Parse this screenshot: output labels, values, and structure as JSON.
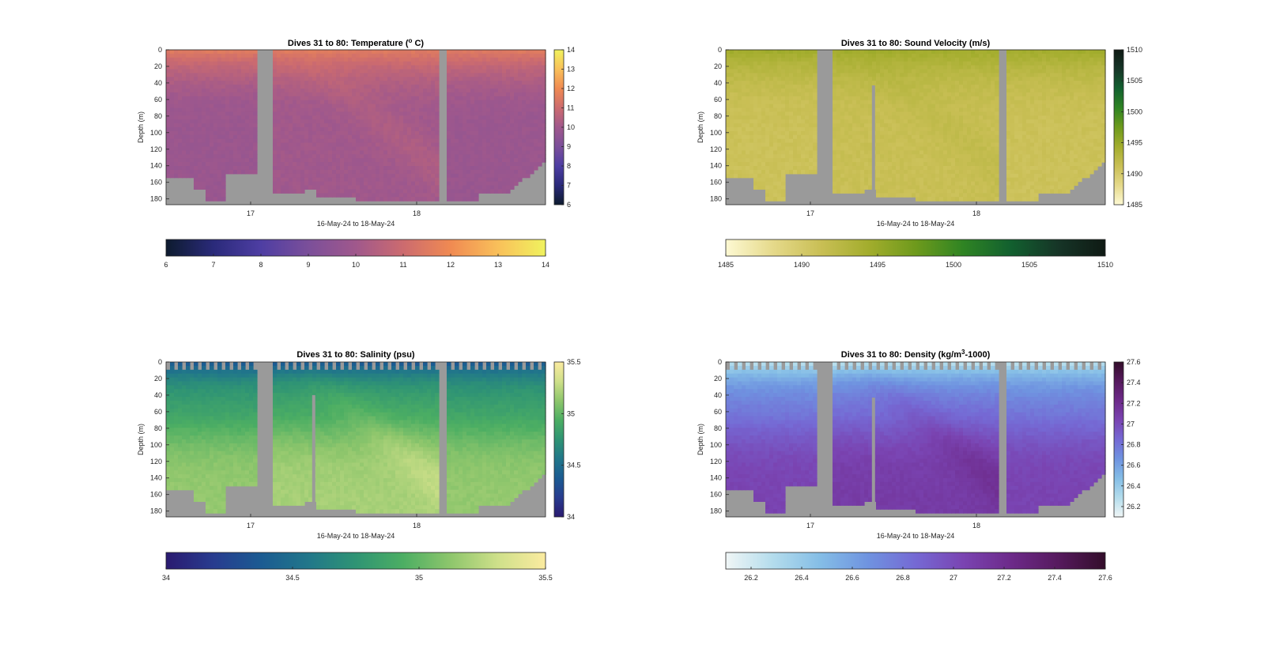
{
  "figure": {
    "time_label": "16-May-24 to 18-May-24"
  },
  "chart_data": [
    {
      "type": "heatmap",
      "title": "Dives 31 to 80: Temperature (",
      "title_sup": "o",
      "title_end": " C)",
      "xlabel": "16-May-24 to 18-May-24",
      "ylabel": "Depth (m)",
      "x_ticks": [
        "17",
        "18"
      ],
      "y_ticks": [
        0,
        20,
        40,
        60,
        80,
        100,
        120,
        140,
        160,
        180
      ],
      "ylim": [
        0,
        187
      ],
      "clim": [
        6,
        14
      ],
      "colorbar_ticks": [
        "6",
        "7",
        "8",
        "9",
        "10",
        "11",
        "12",
        "13",
        "14"
      ],
      "colormap": [
        "#0d1b2e",
        "#2a2a7a",
        "#4e3ea3",
        "#7b4f9a",
        "#a0588c",
        "#cc6b6f",
        "#f08a52",
        "#f9c05a",
        "#f0f25e"
      ],
      "no_data_color": "#9a9a9a",
      "surface_value": 11.6,
      "deep_value": 9.8,
      "mid_value": 9.5,
      "plume_value": 10.3
    },
    {
      "type": "heatmap",
      "title": "Dives 31 to 80: Sound Velocity (m/s)",
      "title_sup": "",
      "title_end": "",
      "xlabel": "16-May-24 to 18-May-24",
      "ylabel": "Depth (m)",
      "x_ticks": [
        "17",
        "18"
      ],
      "y_ticks": [
        0,
        20,
        40,
        60,
        80,
        100,
        120,
        140,
        160,
        180
      ],
      "ylim": [
        0,
        187
      ],
      "clim": [
        1485,
        1510
      ],
      "colorbar_ticks": [
        "1485",
        "1490",
        "1495",
        "1500",
        "1505",
        "1510"
      ],
      "colormap": [
        "#fdf9d3",
        "#e5d98a",
        "#c9bf55",
        "#a3ad2d",
        "#6e9a1c",
        "#2f8423",
        "#12602f",
        "#163527",
        "#0f1a14"
      ],
      "no_data_color": "#9a9a9a",
      "surface_value": 1494.6,
      "deep_value": 1490.9,
      "mid_value": 1490.5,
      "plume_value": 1491.8
    },
    {
      "type": "heatmap",
      "title": "Dives 31 to 80: Salinity (psu)",
      "title_sup": "",
      "title_end": "",
      "xlabel": "16-May-24 to 18-May-24",
      "ylabel": "Depth (m)",
      "x_ticks": [
        "17",
        "18"
      ],
      "y_ticks": [
        0,
        20,
        40,
        60,
        80,
        100,
        120,
        140,
        160,
        180
      ],
      "ylim": [
        0,
        187
      ],
      "clim": [
        34,
        35.5
      ],
      "colorbar_ticks": [
        "34",
        "34.5",
        "35",
        "35.5"
      ],
      "colormap": [
        "#2a1a70",
        "#283c8f",
        "#1b5b92",
        "#21778a",
        "#2f9474",
        "#4cae63",
        "#8ec66c",
        "#cfe08a",
        "#fbeba0"
      ],
      "no_data_color": "#9a9a9a",
      "surface_value": 34.35,
      "deep_value": 35.15,
      "mid_value": 34.85,
      "plume_value": 35.3
    },
    {
      "type": "heatmap",
      "title": "Dives 31 to 80: Density (kg/m",
      "title_sup": "3",
      "title_end": "-1000)",
      "xlabel": "16-May-24 to 18-May-24",
      "ylabel": "Depth (m)",
      "x_ticks": [
        "17",
        "18"
      ],
      "y_ticks": [
        0,
        20,
        40,
        60,
        80,
        100,
        120,
        140,
        160,
        180
      ],
      "ylim": [
        0,
        187
      ],
      "clim": [
        26.1,
        27.6
      ],
      "colorbar_ticks": [
        "26.2",
        "26.4",
        "26.6",
        "26.8",
        "27",
        "27.2",
        "27.4",
        "27.6"
      ],
      "colormap": [
        "#f0f6f6",
        "#b3dcec",
        "#84bde6",
        "#6f93e0",
        "#7569d4",
        "#7a44b2",
        "#6d2a8a",
        "#561a5e",
        "#330d2a"
      ],
      "no_data_color": "#9a9a9a",
      "surface_value": 26.25,
      "deep_value": 27.05,
      "mid_value": 26.8,
      "plume_value": 27.2
    }
  ]
}
